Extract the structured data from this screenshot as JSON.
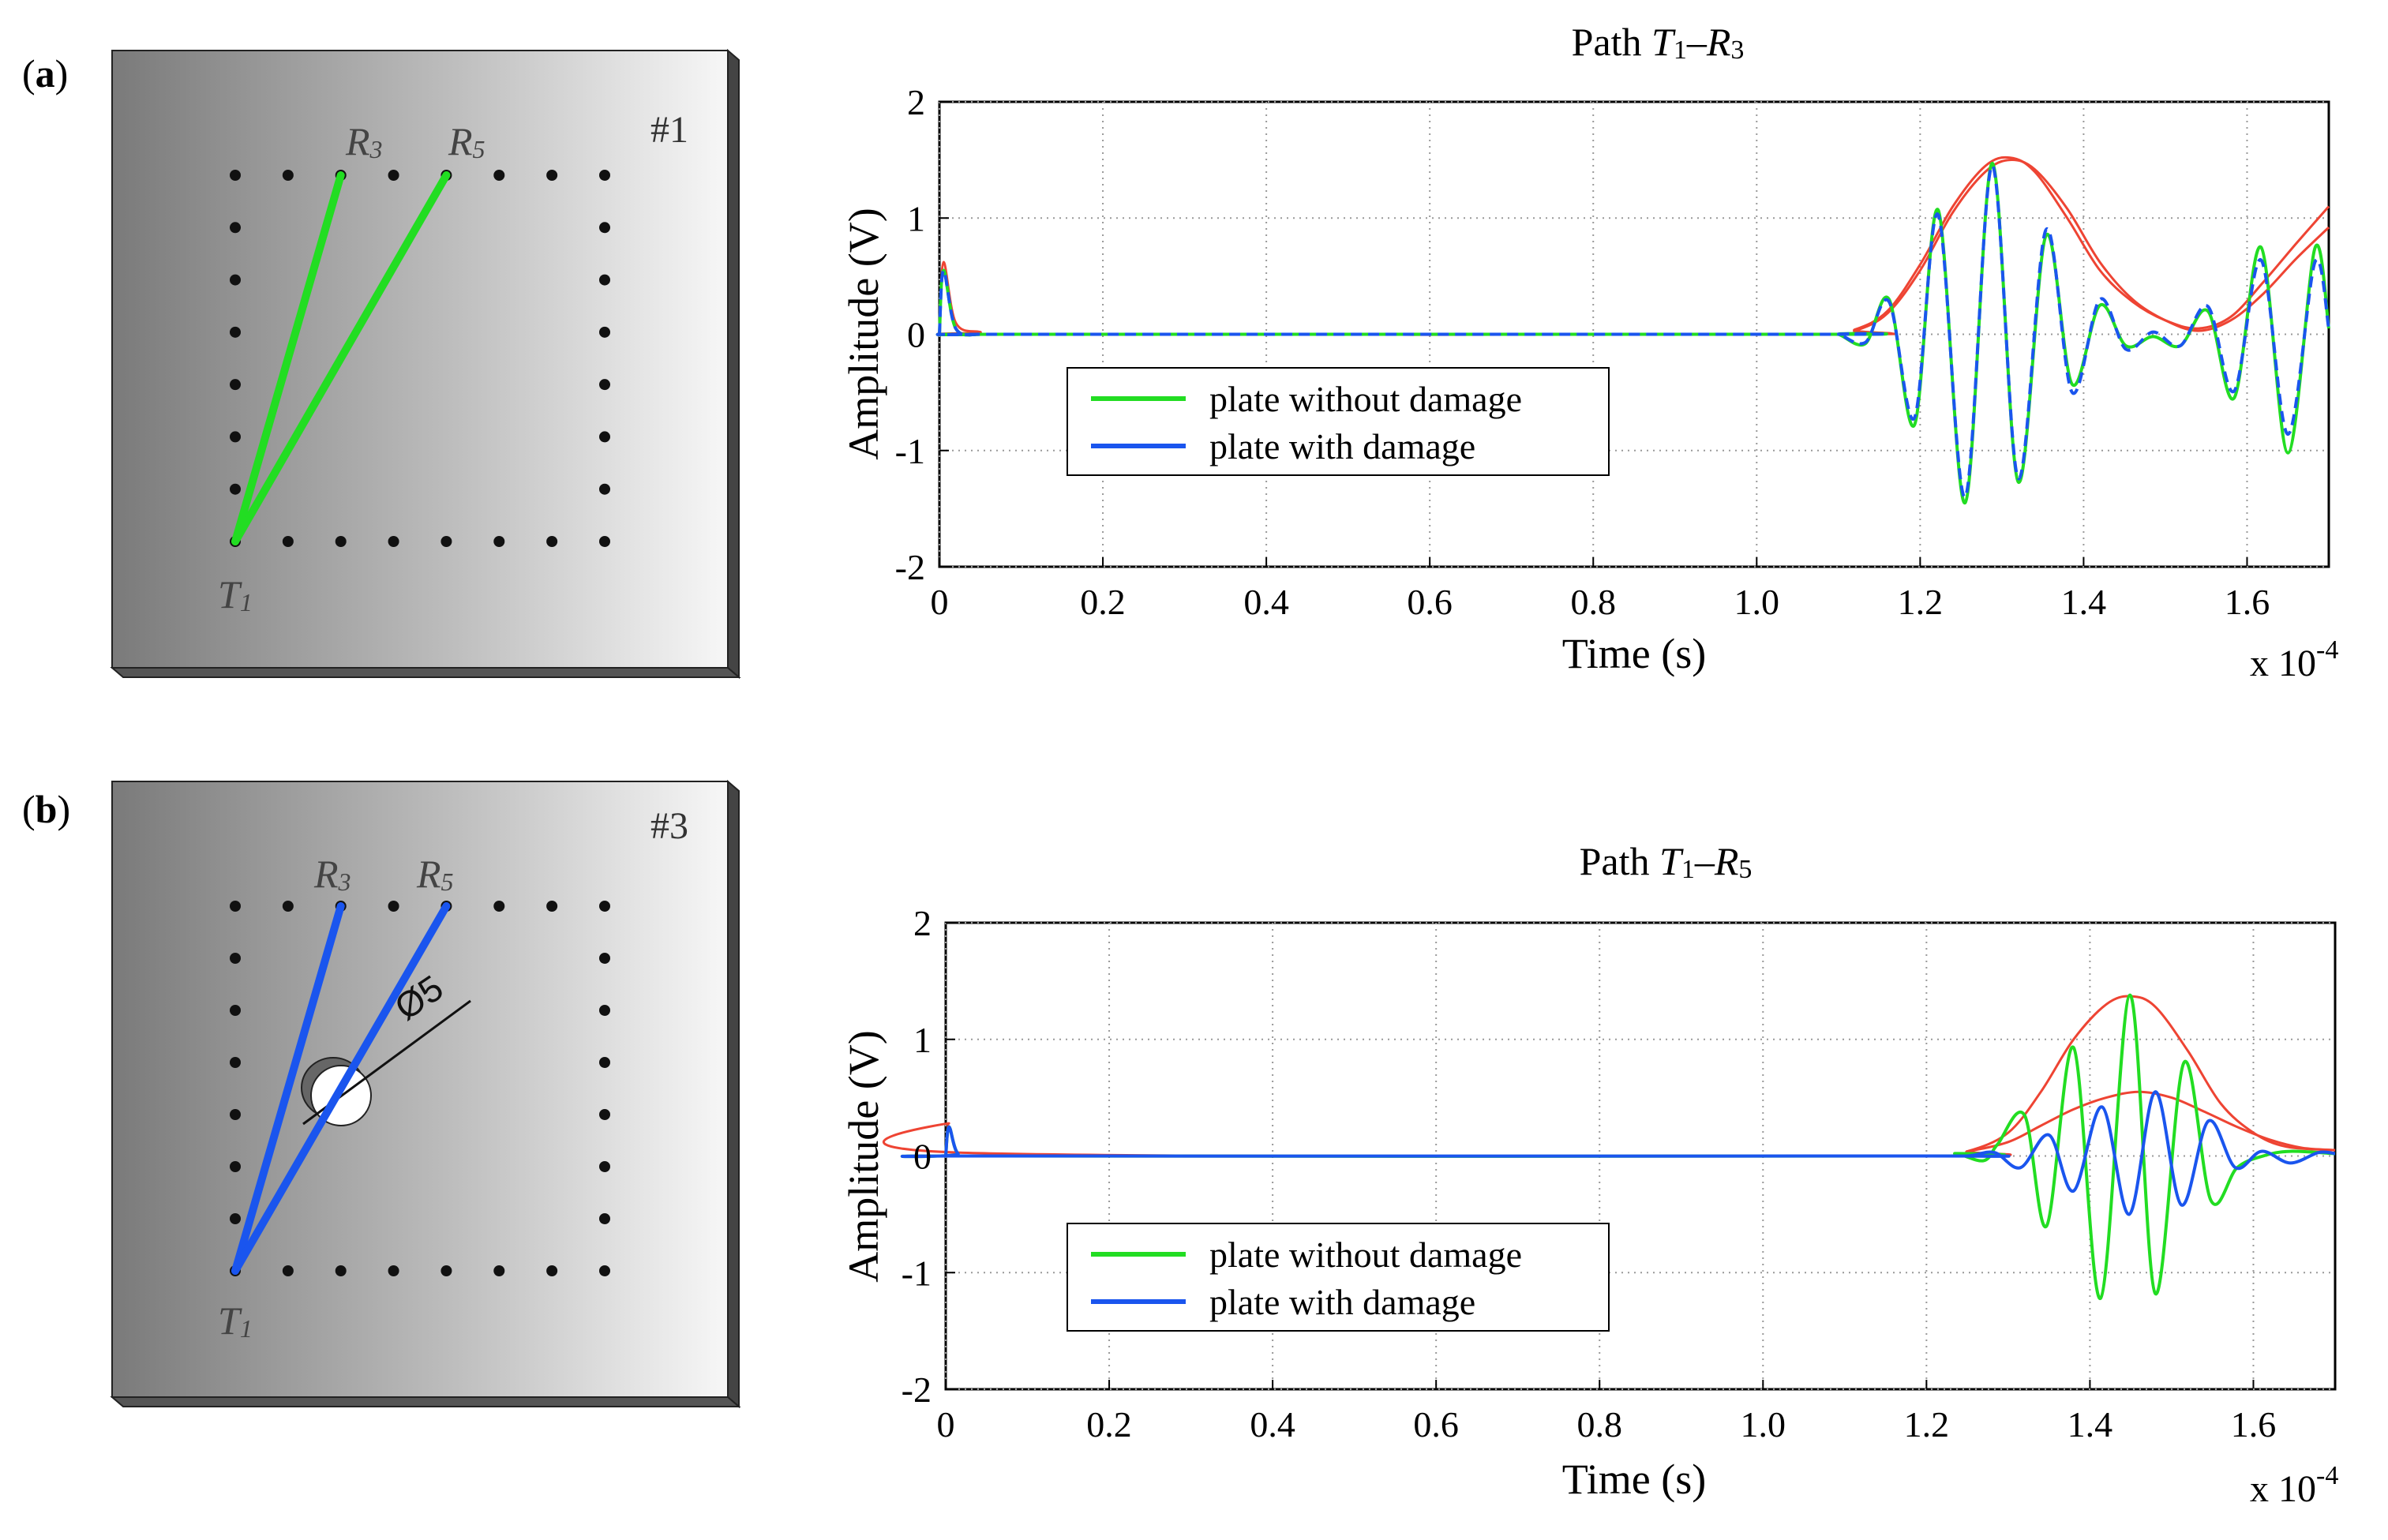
{
  "panels": [
    {
      "label_open": "(",
      "label_letter": "a",
      "label_close": ")",
      "plate_id": "#1",
      "damaged": false,
      "path_color": "#22dd22",
      "transmitter": {
        "main": "T",
        "sub": "1"
      },
      "receivers": [
        {
          "main": "R",
          "sub": "3",
          "index": 3
        },
        {
          "main": "R",
          "sub": "5",
          "index": 5
        }
      ]
    },
    {
      "label_open": "(",
      "label_letter": "b",
      "label_close": ")",
      "plate_id": "#3",
      "damaged": true,
      "damage_label": "Ø5",
      "path_color": "#1a55ee",
      "transmitter": {
        "main": "T",
        "sub": "1"
      },
      "receivers": [
        {
          "main": "R",
          "sub": "3",
          "index": 3
        },
        {
          "main": "R",
          "sub": "5",
          "index": 5
        }
      ]
    }
  ],
  "colors": {
    "no_damage": "#22dd22",
    "damage": "#1a55ee",
    "envelope": "#ee4433",
    "grid": "#999999"
  },
  "chart_data": [
    {
      "type": "line",
      "title": {
        "prefix": "Path ",
        "t": "T",
        "t_sub": "1",
        "dash": "–",
        "r": "R",
        "r_sub": "3"
      },
      "xlabel": "Time (s)",
      "ylabel": "Amplitude (V)",
      "x_multiplier": {
        "base": "x 10",
        "exp": "-4"
      },
      "xlim": [
        0,
        1.7
      ],
      "ylim": [
        -2,
        2
      ],
      "xticks": [
        0,
        0.2,
        0.4,
        0.6,
        0.8,
        1.0,
        1.2,
        1.4,
        1.6
      ],
      "xtick_labels": [
        "0",
        "0.2",
        "0.4",
        "0.6",
        "0.8",
        "1.0",
        "1.2",
        "1.4",
        "1.6"
      ],
      "yticks": [
        -2,
        -1,
        0,
        1,
        2
      ],
      "ytick_labels": [
        "-2",
        "-1",
        "0",
        "1",
        "2"
      ],
      "legend": {
        "position": "center-left",
        "entries": [
          "plate without damage",
          "plate with damage"
        ]
      },
      "series": [
        {
          "name": "plate without damage",
          "color": "#22dd22",
          "dashed": false,
          "x": [
            0,
            0.005,
            0.02,
            0.05,
            0.08,
            1.08,
            1.1,
            1.133,
            1.162,
            1.193,
            1.222,
            1.255,
            1.288,
            1.32,
            1.354,
            1.386,
            1.42,
            1.452,
            1.485,
            1.518,
            1.552,
            1.584,
            1.617,
            1.65,
            1.683,
            1.7
          ],
          "y": [
            0.0,
            0.55,
            0.05,
            0.0,
            0.0,
            0.0,
            0.0,
            -0.08,
            0.3,
            -0.78,
            1.07,
            -1.45,
            1.47,
            -1.27,
            0.85,
            -0.43,
            0.25,
            -0.1,
            -0.02,
            -0.1,
            0.2,
            -0.55,
            0.75,
            -1.02,
            0.74,
            0.05
          ]
        },
        {
          "name": "plate with damage",
          "color": "#1a55ee",
          "dashed": true,
          "x": [
            0,
            0.005,
            0.02,
            0.05,
            0.08,
            1.08,
            1.1,
            1.133,
            1.162,
            1.193,
            1.222,
            1.255,
            1.288,
            1.32,
            1.354,
            1.386,
            1.42,
            1.452,
            1.485,
            1.518,
            1.552,
            1.584,
            1.617,
            1.65,
            1.683,
            1.7
          ],
          "y": [
            0.0,
            0.55,
            0.05,
            0.0,
            0.0,
            0.0,
            0.0,
            -0.07,
            0.28,
            -0.72,
            1.03,
            -1.4,
            1.45,
            -1.24,
            0.9,
            -0.5,
            0.3,
            -0.13,
            0.02,
            -0.1,
            0.24,
            -0.49,
            0.64,
            -0.86,
            0.62,
            0.05
          ]
        },
        {
          "name": "envelope without damage",
          "color": "#ee4433",
          "dashed": false,
          "in_legend": false,
          "x": [
            0,
            0.005,
            0.02,
            0.05,
            0.08,
            1.08,
            1.12,
            1.16,
            1.2,
            1.24,
            1.28,
            1.31,
            1.34,
            1.38,
            1.42,
            1.46,
            1.5,
            1.54,
            1.58,
            1.62,
            1.66,
            1.7
          ],
          "y": [
            0.0,
            0.62,
            0.1,
            0.02,
            0.0,
            0.0,
            0.04,
            0.2,
            0.6,
            1.1,
            1.45,
            1.52,
            1.4,
            1.0,
            0.55,
            0.28,
            0.12,
            0.05,
            0.15,
            0.45,
            0.78,
            1.1
          ]
        },
        {
          "name": "envelope with damage",
          "color": "#ee4433",
          "dashed": false,
          "in_legend": false,
          "x": [
            0,
            1.08,
            1.12,
            1.16,
            1.2,
            1.24,
            1.28,
            1.31,
            1.34,
            1.38,
            1.42,
            1.46,
            1.5,
            1.54,
            1.58,
            1.62,
            1.66,
            1.7
          ],
          "y": [
            0.0,
            0.0,
            0.03,
            0.18,
            0.55,
            1.05,
            1.4,
            1.5,
            1.42,
            1.08,
            0.62,
            0.3,
            0.12,
            0.03,
            0.12,
            0.35,
            0.65,
            0.92
          ]
        }
      ]
    },
    {
      "type": "line",
      "title": {
        "prefix": "Path ",
        "t": "T",
        "t_sub": "1",
        "dash": "–",
        "r": "R",
        "r_sub": "5"
      },
      "xlabel": "Time (s)",
      "ylabel": "Amplitude (V)",
      "x_multiplier": {
        "base": "x 10",
        "exp": "-4"
      },
      "xlim": [
        0,
        1.7
      ],
      "ylim": [
        -2,
        2
      ],
      "xticks": [
        0,
        0.2,
        0.4,
        0.6,
        0.8,
        1.0,
        1.2,
        1.4,
        1.6
      ],
      "xtick_labels": [
        "0",
        "0.2",
        "0.4",
        "0.6",
        "0.8",
        "1.0",
        "1.2",
        "1.4",
        "1.6"
      ],
      "yticks": [
        -2,
        -1,
        0,
        1,
        2
      ],
      "ytick_labels": [
        "-2",
        "-1",
        "0",
        "1",
        "2"
      ],
      "legend": {
        "position": "bottom-left",
        "entries": [
          "plate without damage",
          "plate with damage"
        ]
      },
      "series": [
        {
          "name": "plate without damage",
          "color": "#22dd22",
          "dashed": false,
          "x": [
            0,
            0.004,
            0.015,
            0.04,
            1.2,
            1.235,
            1.27,
            1.287,
            1.32,
            1.347,
            1.38,
            1.413,
            1.449,
            1.48,
            1.515,
            1.548,
            1.58,
            1.612,
            1.645,
            1.7
          ],
          "y": [
            0.0,
            0.25,
            0.02,
            0.0,
            0.0,
            0.02,
            -0.04,
            0.1,
            0.35,
            -0.6,
            0.93,
            -1.22,
            1.38,
            -1.18,
            0.8,
            -0.38,
            -0.1,
            0.0,
            0.04,
            0.02
          ]
        },
        {
          "name": "plate with damage",
          "color": "#1a55ee",
          "dashed": false,
          "x": [
            0,
            0.004,
            0.015,
            0.04,
            1.2,
            1.25,
            1.283,
            1.315,
            1.35,
            1.38,
            1.415,
            1.448,
            1.48,
            1.512,
            1.545,
            1.578,
            1.61,
            1.645,
            1.68,
            1.7
          ],
          "y": [
            0.0,
            0.25,
            0.02,
            0.0,
            0.0,
            0.0,
            0.03,
            -0.1,
            0.18,
            -0.3,
            0.42,
            -0.5,
            0.55,
            -0.42,
            0.3,
            -0.1,
            0.04,
            -0.06,
            0.03,
            0.02
          ]
        },
        {
          "name": "envelope without damage",
          "color": "#ee4433",
          "dashed": false,
          "in_legend": false,
          "x": [
            0,
            0.004,
            0.015,
            1.2,
            1.25,
            1.3,
            1.34,
            1.38,
            1.42,
            1.45,
            1.48,
            1.52,
            1.56,
            1.6,
            1.64,
            1.7
          ],
          "y": [
            0.0,
            0.28,
            0.03,
            0.0,
            0.04,
            0.2,
            0.55,
            1.0,
            1.3,
            1.37,
            1.28,
            0.9,
            0.45,
            0.2,
            0.08,
            0.05
          ]
        },
        {
          "name": "envelope with damage",
          "color": "#ee4433",
          "dashed": false,
          "in_legend": false,
          "x": [
            0,
            1.2,
            1.25,
            1.3,
            1.34,
            1.38,
            1.42,
            1.46,
            1.5,
            1.54,
            1.58,
            1.62,
            1.66,
            1.7
          ],
          "y": [
            0.0,
            0.0,
            0.04,
            0.12,
            0.26,
            0.4,
            0.5,
            0.55,
            0.5,
            0.38,
            0.25,
            0.14,
            0.07,
            0.05
          ]
        }
      ]
    }
  ]
}
